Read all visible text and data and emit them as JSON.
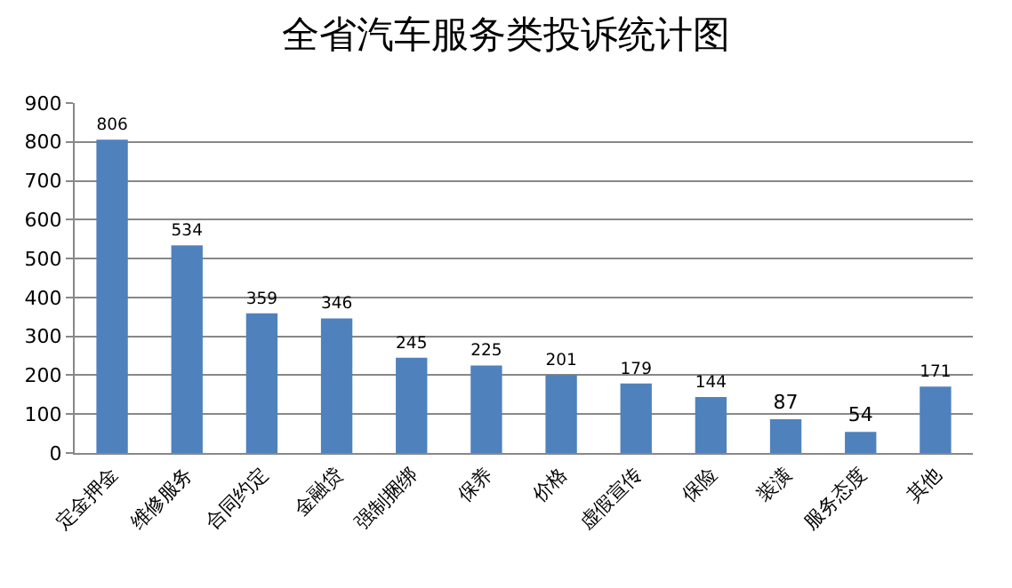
{
  "chart_data": {
    "type": "bar",
    "title": "全省汽车服务类投诉统计图",
    "categories": [
      "定金押金",
      "维修服务",
      "合同约定",
      "金融贷",
      "强制捆绑",
      "保养",
      "价格",
      "虚假宣传",
      "保险",
      "装潢",
      "服务态度",
      "其他"
    ],
    "values": [
      806,
      534,
      359,
      346,
      245,
      225,
      201,
      179,
      144,
      87,
      54,
      171
    ],
    "color": "#4f81bd",
    "ylim": [
      0,
      900
    ],
    "yticks": [
      0,
      100,
      200,
      300,
      400,
      500,
      600,
      700,
      800,
      900
    ],
    "grid": "y",
    "data_labels": true,
    "legend": false
  }
}
